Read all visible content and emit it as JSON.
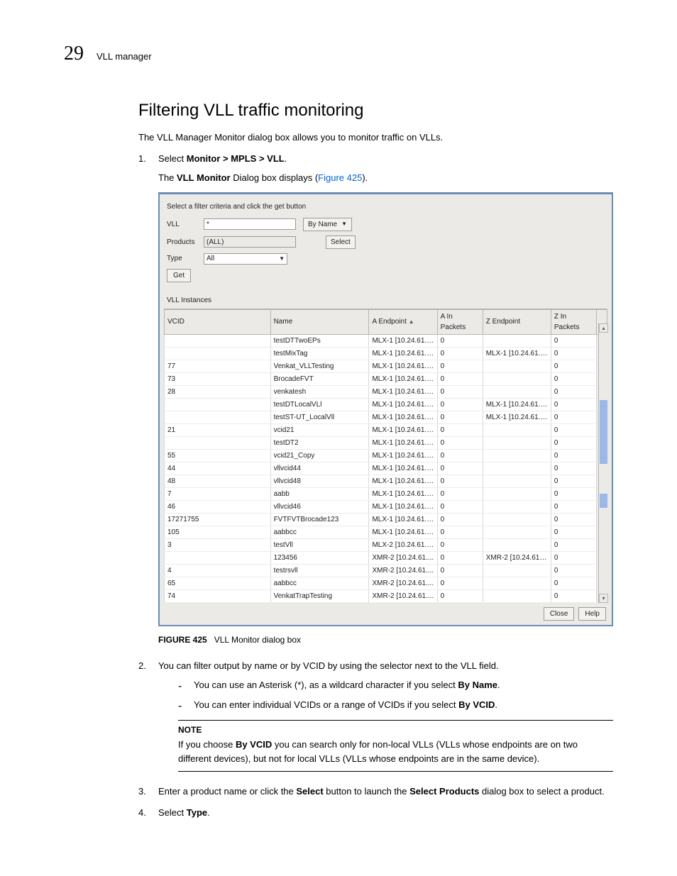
{
  "page": {
    "number": "29",
    "section": "VLL manager"
  },
  "heading": "Filtering VLL traffic monitoring",
  "intro": "The VLL Manager Monitor dialog box allows you to monitor traffic on VLLs.",
  "steps": {
    "1": {
      "prefix": "Select ",
      "bold": "Monitor > MPLS > VLL",
      "suffix": ".",
      "sub_prefix": "The ",
      "sub_bold": "VLL Monitor",
      "sub_mid": " Dialog box displays (",
      "sub_link": "Figure 425",
      "sub_end": ")."
    },
    "2": {
      "text": "You can filter output by name or by VCID by using the selector next to the VLL field.",
      "dash1_a": "You can use an Asterisk (*), as a wildcard character if you select ",
      "dash1_b": "By Name",
      "dash1_c": ".",
      "dash2_a": "You can enter individual VCIDs or a range of VCIDs if you select ",
      "dash2_b": "By VCID",
      "dash2_c": "."
    },
    "3": {
      "a": "Enter a product name or click the ",
      "b": "Select",
      "c": " button to launch the ",
      "d": "Select Products",
      "e": " dialog box to select a product."
    },
    "4": {
      "a": "Select ",
      "b": "Type",
      "c": "."
    }
  },
  "note": {
    "label": "NOTE",
    "a": "If you choose ",
    "b": "By VCID",
    "c": " you can search only for non-local VLLs (VLLs whose endpoints are on two different devices), but not for local VLLs (VLLs whose endpoints are in the same device)."
  },
  "figure": {
    "label": "FIGURE 425",
    "caption": "VLL Monitor dialog box"
  },
  "dialog": {
    "criteria_label": "Select a filter criteria and click the get button",
    "vll_label": "VLL",
    "vll_value": "*",
    "byname": "By Name",
    "products_label": "Products",
    "products_value": "(ALL)",
    "select_btn": "Select",
    "type_label": "Type",
    "type_value": "All",
    "get_btn": "Get",
    "instances_label": "VLL Instances",
    "columns": [
      "VCID",
      "Name",
      "A Endpoint",
      "A In Packets",
      "Z Endpoint",
      "Z In Packets"
    ],
    "col_widths": [
      "140px",
      "130px",
      "90px",
      "60px",
      "90px",
      "60px",
      "14px"
    ],
    "rows": [
      [
        "",
        "testDTTwoEPs",
        "MLX-1 [10.24.61.2...",
        "0",
        "",
        "0"
      ],
      [
        "",
        "testMixTag",
        "MLX-1 [10.24.61.2...",
        "0",
        "MLX-1 [10.24.61.2...",
        "0"
      ],
      [
        "77",
        "Venkat_VLLTesting",
        "MLX-1 [10.24.61.2...",
        "0",
        "",
        "0"
      ],
      [
        "73",
        "BrocadeFVT",
        "MLX-1 [10.24.61.2...",
        "0",
        "",
        "0"
      ],
      [
        "28",
        "venkatesh",
        "MLX-1 [10.24.61.2...",
        "0",
        "",
        "0"
      ],
      [
        "",
        "testDTLocalVLl",
        "MLX-1 [10.24.61.2...",
        "0",
        "MLX-1 [10.24.61.2...",
        "0"
      ],
      [
        "",
        "testST-UT_LocalVll",
        "MLX-1 [10.24.61.2...",
        "0",
        "MLX-1 [10.24.61.2...",
        "0"
      ],
      [
        "21",
        "vcid21",
        "MLX-1 [10.24.61.2...",
        "0",
        "",
        "0"
      ],
      [
        "",
        "testDT2",
        "MLX-1 [10.24.61.2...",
        "0",
        "",
        "0"
      ],
      [
        "55",
        "vcid21_Copy",
        "MLX-1 [10.24.61.2...",
        "0",
        "",
        "0"
      ],
      [
        "44",
        "vllvcid44",
        "MLX-1 [10.24.61.2...",
        "0",
        "",
        "0"
      ],
      [
        "48",
        "vllvcid48",
        "MLX-1 [10.24.61.2...",
        "0",
        "",
        "0"
      ],
      [
        "7",
        "aabb",
        "MLX-1 [10.24.61.2...",
        "0",
        "",
        "0"
      ],
      [
        "46",
        "vllvcid46",
        "MLX-1 [10.24.61.2...",
        "0",
        "",
        "0"
      ],
      [
        "17271755",
        "FVTFVTBrocade123",
        "MLX-1 [10.24.61.2...",
        "0",
        "",
        "0"
      ],
      [
        "105",
        "aabbcc",
        "MLX-1 [10.24.61.2...",
        "0",
        "",
        "0"
      ],
      [
        "3",
        "testVll",
        "MLX-2 [10.24.61.2...",
        "0",
        "",
        "0"
      ],
      [
        "",
        "123456",
        "XMR-2 [10.24.61....",
        "0",
        "XMR-2 [10.24.61.2...",
        "0"
      ],
      [
        "4",
        "testrsvll",
        "XMR-2 [10.24.61....",
        "0",
        "",
        "0"
      ],
      [
        "65",
        "aabbcc",
        "XMR-2 [10.24.61....",
        "0",
        "",
        "0"
      ],
      [
        "74",
        "VenkatTrapTesting",
        "XMR-2 [10.24.61....",
        "0",
        "",
        "0"
      ]
    ],
    "close_btn": "Close",
    "help_btn": "Help"
  }
}
